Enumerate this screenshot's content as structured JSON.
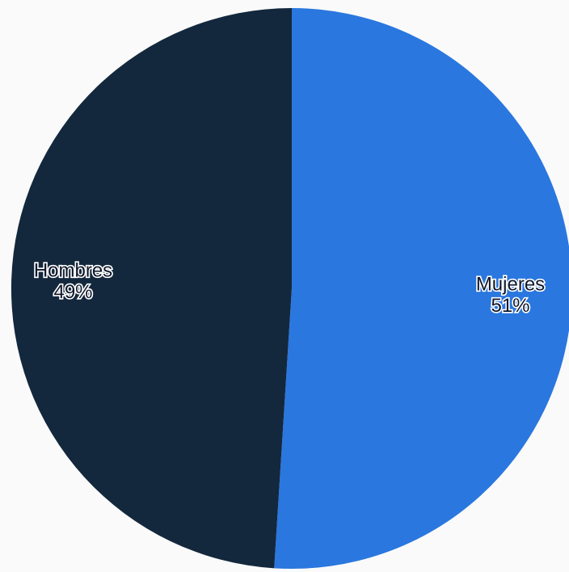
{
  "chart_data": {
    "type": "pie",
    "title": "",
    "start_angle_deg": 0,
    "direction": "clockwise",
    "labels_show_percent": true,
    "slices": [
      {
        "label": "Mujeres",
        "value": 51,
        "percent_label": "51%",
        "color": "#2a77df"
      },
      {
        "label": "Hombres",
        "value": 49,
        "percent_label": "49%",
        "color": "#13283d"
      }
    ]
  }
}
